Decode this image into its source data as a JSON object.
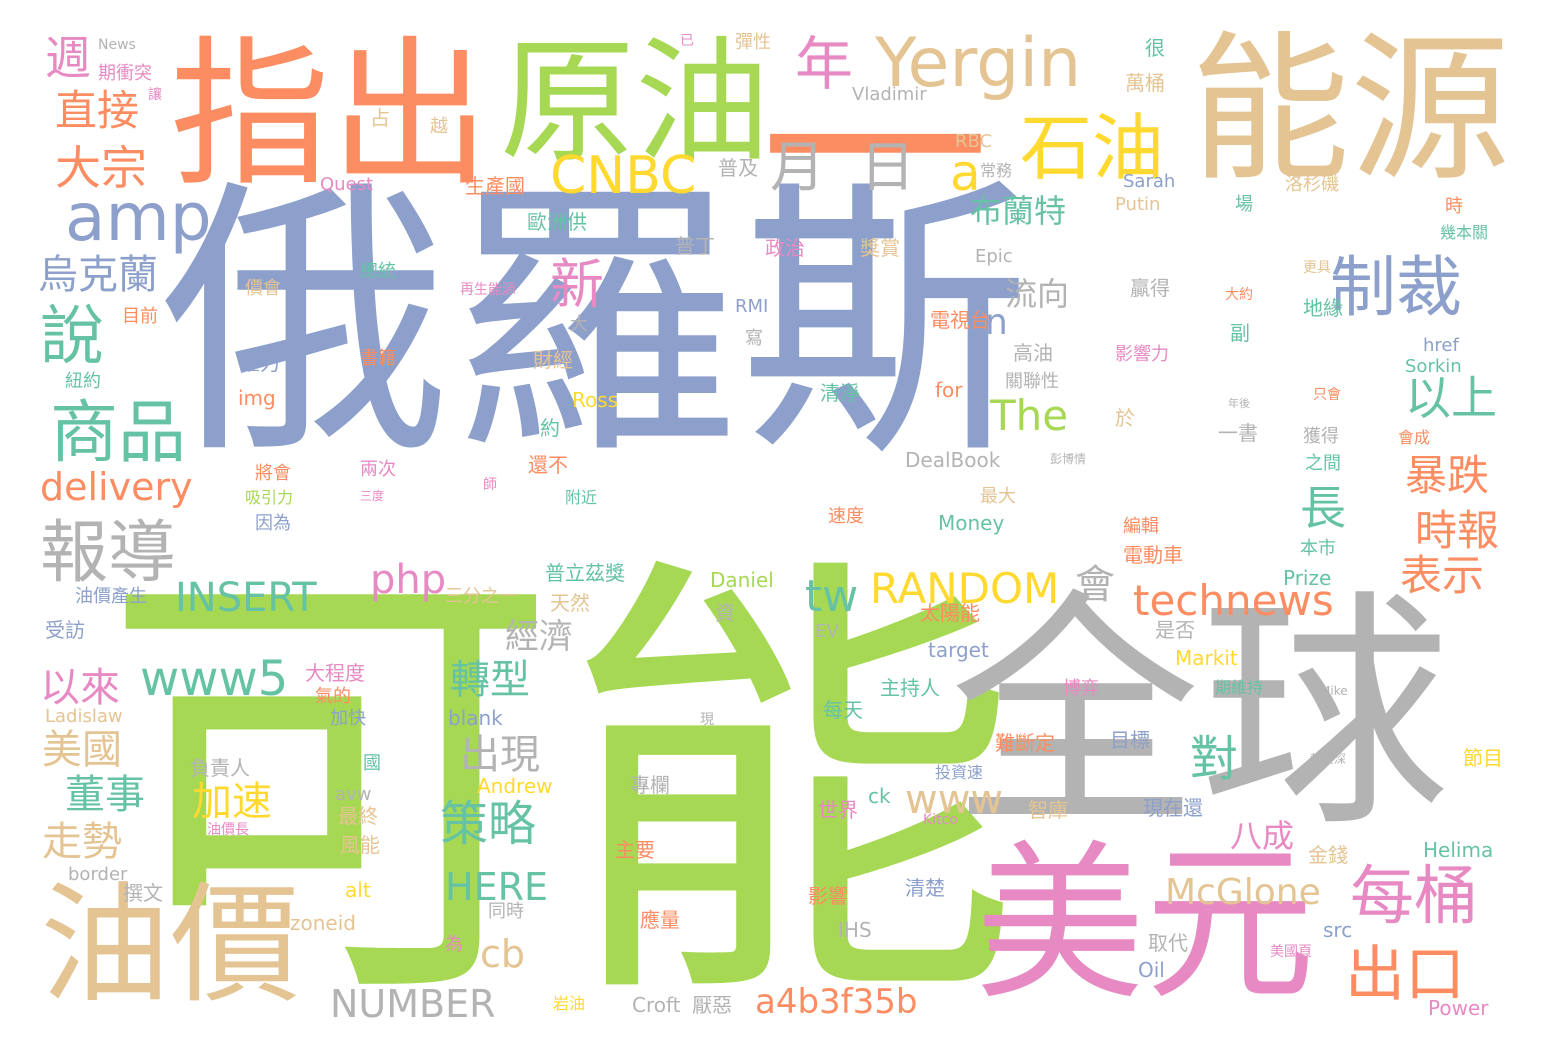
{
  "palette": {
    "blue": "#8da0cb",
    "green": "#a6d854",
    "gray": "#b3b3b3",
    "orange": "#fc8d62",
    "tan": "#e5c494",
    "pink": "#e78ac3",
    "yellow": "#ffd92f",
    "teal": "#66c2a5"
  },
  "words": [
    {
      "text": "俄羅斯",
      "color": "blue"
    },
    {
      "text": "可能",
      "color": "green"
    },
    {
      "text": "全球",
      "color": "gray"
    },
    {
      "text": "指出",
      "color": "orange"
    },
    {
      "text": "能源",
      "color": "tan"
    },
    {
      "text": "原油",
      "color": "green"
    },
    {
      "text": "美元",
      "color": "pink"
    },
    {
      "text": "油價",
      "color": "tan"
    },
    {
      "text": "一",
      "color": "orange"
    },
    {
      "text": "Yergin",
      "color": "tan"
    },
    {
      "text": "石油",
      "color": "yellow"
    },
    {
      "text": "年",
      "color": "pink"
    },
    {
      "text": "月",
      "color": "gray"
    },
    {
      "text": "日",
      "color": "gray"
    },
    {
      "text": "CNBC",
      "color": "yellow"
    },
    {
      "text": "amp",
      "color": "blue"
    },
    {
      "text": "制裁",
      "color": "blue"
    },
    {
      "text": "商品",
      "color": "teal"
    },
    {
      "text": "報導",
      "color": "gray"
    },
    {
      "text": "說",
      "color": "teal"
    },
    {
      "text": "大宗",
      "color": "orange"
    },
    {
      "text": "直接",
      "color": "orange"
    },
    {
      "text": "週",
      "color": "pink"
    },
    {
      "text": "烏克蘭",
      "color": "blue"
    },
    {
      "text": "新",
      "color": "pink"
    },
    {
      "text": "a",
      "color": "yellow"
    },
    {
      "text": "布蘭特",
      "color": "teal"
    },
    {
      "text": "流向",
      "color": "gray"
    },
    {
      "text": "n",
      "color": "blue"
    },
    {
      "text": "以上",
      "color": "teal"
    },
    {
      "text": "The",
      "color": "green"
    },
    {
      "text": "暴跌",
      "color": "orange"
    },
    {
      "text": "時報",
      "color": "orange"
    },
    {
      "text": "長",
      "color": "teal"
    },
    {
      "text": "表示",
      "color": "orange"
    },
    {
      "text": "每桶",
      "color": "pink"
    },
    {
      "text": "出口",
      "color": "orange"
    },
    {
      "text": "delivery",
      "color": "orange"
    },
    {
      "text": "php",
      "color": "pink"
    },
    {
      "text": "INSERT",
      "color": "teal"
    },
    {
      "text": "tw",
      "color": "teal"
    },
    {
      "text": "RANDOM",
      "color": "yellow"
    },
    {
      "text": "會",
      "color": "gray"
    },
    {
      "text": "technews",
      "color": "orange"
    },
    {
      "text": "www5",
      "color": "teal"
    },
    {
      "text": "以來",
      "color": "pink"
    },
    {
      "text": "轉型",
      "color": "teal"
    },
    {
      "text": "經濟",
      "color": "gray"
    },
    {
      "text": "出現",
      "color": "gray"
    },
    {
      "text": "對",
      "color": "teal"
    },
    {
      "text": "美國",
      "color": "tan"
    },
    {
      "text": "董事",
      "color": "teal"
    },
    {
      "text": "走勢",
      "color": "tan"
    },
    {
      "text": "加速",
      "color": "yellow"
    },
    {
      "text": "策略",
      "color": "teal"
    },
    {
      "text": "www",
      "color": "tan"
    },
    {
      "text": "八成",
      "color": "pink"
    },
    {
      "text": "HERE",
      "color": "teal"
    },
    {
      "text": "cb",
      "color": "tan"
    },
    {
      "text": "McGlone",
      "color": "tan"
    },
    {
      "text": "NUMBER",
      "color": "gray"
    },
    {
      "text": "a4b3f35b",
      "color": "orange"
    },
    {
      "text": "News",
      "color": "gray"
    },
    {
      "text": "期衝突",
      "color": "pink"
    },
    {
      "text": "讓",
      "color": "pink"
    },
    {
      "text": "占",
      "color": "tan"
    },
    {
      "text": "越",
      "color": "tan"
    },
    {
      "text": "已",
      "color": "pink"
    },
    {
      "text": "彈性",
      "color": "tan"
    },
    {
      "text": "Vladimir",
      "color": "gray"
    },
    {
      "text": "很",
      "color": "teal"
    },
    {
      "text": "萬桶",
      "color": "tan"
    },
    {
      "text": "RBC",
      "color": "tan"
    },
    {
      "text": "常務",
      "color": "gray"
    },
    {
      "text": "普及",
      "color": "gray"
    },
    {
      "text": "Quest",
      "color": "pink"
    },
    {
      "text": "生產國",
      "color": "orange"
    },
    {
      "text": "Sarah",
      "color": "blue"
    },
    {
      "text": "洛杉磯",
      "color": "tan"
    },
    {
      "text": "Putin",
      "color": "tan"
    },
    {
      "text": "場",
      "color": "teal"
    },
    {
      "text": "時",
      "color": "orange"
    },
    {
      "text": "幾本關",
      "color": "teal"
    },
    {
      "text": "歐洲供",
      "color": "teal"
    },
    {
      "text": "普丁",
      "color": "gray"
    },
    {
      "text": "政治",
      "color": "pink"
    },
    {
      "text": "獎賞",
      "color": "tan"
    },
    {
      "text": "Epic",
      "color": "gray"
    },
    {
      "text": "價會",
      "color": "tan"
    },
    {
      "text": "總統",
      "color": "teal"
    },
    {
      "text": "再生能源",
      "color": "pink"
    },
    {
      "text": "贏得",
      "color": "gray"
    },
    {
      "text": "更具",
      "color": "tan"
    },
    {
      "text": "大約",
      "color": "orange"
    },
    {
      "text": "地緣",
      "color": "teal"
    },
    {
      "text": "目前",
      "color": "orange"
    },
    {
      "text": "RMI",
      "color": "blue"
    },
    {
      "text": "電視台",
      "color": "orange"
    },
    {
      "text": "大",
      "color": "gray"
    },
    {
      "text": "副",
      "color": "teal"
    },
    {
      "text": "權力",
      "color": "blue"
    },
    {
      "text": "寫",
      "color": "gray"
    },
    {
      "text": "高油",
      "color": "gray"
    },
    {
      "text": "影響力",
      "color": "pink"
    },
    {
      "text": "href",
      "color": "blue"
    },
    {
      "text": "書籍",
      "color": "orange"
    },
    {
      "text": "財經",
      "color": "tan"
    },
    {
      "text": "Sorkin",
      "color": "teal"
    },
    {
      "text": "紐約",
      "color": "teal"
    },
    {
      "text": "img",
      "color": "orange"
    },
    {
      "text": "Ross",
      "color": "yellow"
    },
    {
      "text": "清淨",
      "color": "teal"
    },
    {
      "text": "for",
      "color": "orange"
    },
    {
      "text": "關聯性",
      "color": "gray"
    },
    {
      "text": "只會",
      "color": "orange"
    },
    {
      "text": "年後",
      "color": "gray"
    },
    {
      "text": "約",
      "color": "teal"
    },
    {
      "text": "於",
      "color": "tan"
    },
    {
      "text": "獲得",
      "color": "gray"
    },
    {
      "text": "一書",
      "color": "gray"
    },
    {
      "text": "會成",
      "color": "orange"
    },
    {
      "text": "將會",
      "color": "orange"
    },
    {
      "text": "吸引力",
      "color": "green"
    },
    {
      "text": "兩次",
      "color": "pink"
    },
    {
      "text": "還不",
      "color": "orange"
    },
    {
      "text": "DealBook",
      "color": "gray"
    },
    {
      "text": "彭博情",
      "color": "gray"
    },
    {
      "text": "之間",
      "color": "teal"
    },
    {
      "text": "因為",
      "color": "blue"
    },
    {
      "text": "三度",
      "color": "pink"
    },
    {
      "text": "師",
      "color": "pink"
    },
    {
      "text": "附近",
      "color": "teal"
    },
    {
      "text": "最大",
      "color": "tan"
    },
    {
      "text": "速度",
      "color": "orange"
    },
    {
      "text": "Money",
      "color": "teal"
    },
    {
      "text": "編輯",
      "color": "orange"
    },
    {
      "text": "電動車",
      "color": "orange"
    },
    {
      "text": "本市",
      "color": "teal"
    },
    {
      "text": "普立茲獎",
      "color": "teal"
    },
    {
      "text": "三分之一",
      "color": "tan"
    },
    {
      "text": "天然",
      "color": "tan"
    },
    {
      "text": "Daniel",
      "color": "green"
    },
    {
      "text": "Prize",
      "color": "teal"
    },
    {
      "text": "油價產生",
      "color": "blue"
    },
    {
      "text": "資",
      "color": "gray"
    },
    {
      "text": "太陽能",
      "color": "orange"
    },
    {
      "text": "受訪",
      "color": "blue"
    },
    {
      "text": "EV",
      "color": "gray"
    },
    {
      "text": "是否",
      "color": "gray"
    },
    {
      "text": "大程度",
      "color": "pink"
    },
    {
      "text": "target",
      "color": "blue"
    },
    {
      "text": "Markit",
      "color": "yellow"
    },
    {
      "text": "氣的",
      "color": "orange"
    },
    {
      "text": "主持人",
      "color": "teal"
    },
    {
      "text": "博弈",
      "color": "pink"
    },
    {
      "text": "期維持",
      "color": "teal"
    },
    {
      "text": "Mike",
      "color": "gray"
    },
    {
      "text": "Ladislaw",
      "color": "tan"
    },
    {
      "text": "加快",
      "color": "blue"
    },
    {
      "text": "blank",
      "color": "blue"
    },
    {
      "text": "每天",
      "color": "teal"
    },
    {
      "text": "現",
      "color": "gray"
    },
    {
      "text": "負責人",
      "color": "gray"
    },
    {
      "text": "國",
      "color": "teal"
    },
    {
      "text": "難斷定",
      "color": "orange"
    },
    {
      "text": "目標",
      "color": "blue"
    },
    {
      "text": "朝資深",
      "color": "gray"
    },
    {
      "text": "節目",
      "color": "yellow"
    },
    {
      "text": "avw",
      "color": "gray"
    },
    {
      "text": "Andrew",
      "color": "yellow"
    },
    {
      "text": "專欄",
      "color": "gray"
    },
    {
      "text": "投資速",
      "color": "blue"
    },
    {
      "text": "最終",
      "color": "tan"
    },
    {
      "text": "世界",
      "color": "pink"
    },
    {
      "text": "ck",
      "color": "teal"
    },
    {
      "text": "智庫",
      "color": "tan"
    },
    {
      "text": "現在還",
      "color": "blue"
    },
    {
      "text": "油價長",
      "color": "pink"
    },
    {
      "text": "Kitco",
      "color": "pink"
    },
    {
      "text": "風能",
      "color": "tan"
    },
    {
      "text": "主要",
      "color": "orange"
    },
    {
      "text": "金錢",
      "color": "tan"
    },
    {
      "text": "Helima",
      "color": "teal"
    },
    {
      "text": "border",
      "color": "gray"
    },
    {
      "text": "撰文",
      "color": "gray"
    },
    {
      "text": "alt",
      "color": "yellow"
    },
    {
      "text": "影響",
      "color": "orange"
    },
    {
      "text": "清楚",
      "color": "blue"
    },
    {
      "text": "同時",
      "color": "gray"
    },
    {
      "text": "zoneid",
      "color": "tan"
    },
    {
      "text": "應量",
      "color": "orange"
    },
    {
      "text": "IHS",
      "color": "gray"
    },
    {
      "text": "src",
      "color": "blue"
    },
    {
      "text": "為",
      "color": "pink"
    },
    {
      "text": "取代",
      "color": "gray"
    },
    {
      "text": "Oil",
      "color": "blue"
    },
    {
      "text": "美國頁",
      "color": "pink"
    },
    {
      "text": "岩油",
      "color": "yellow"
    },
    {
      "text": "Croft",
      "color": "gray"
    },
    {
      "text": "厭惡",
      "color": "gray"
    },
    {
      "text": "Power",
      "color": "pink"
    }
  ]
}
